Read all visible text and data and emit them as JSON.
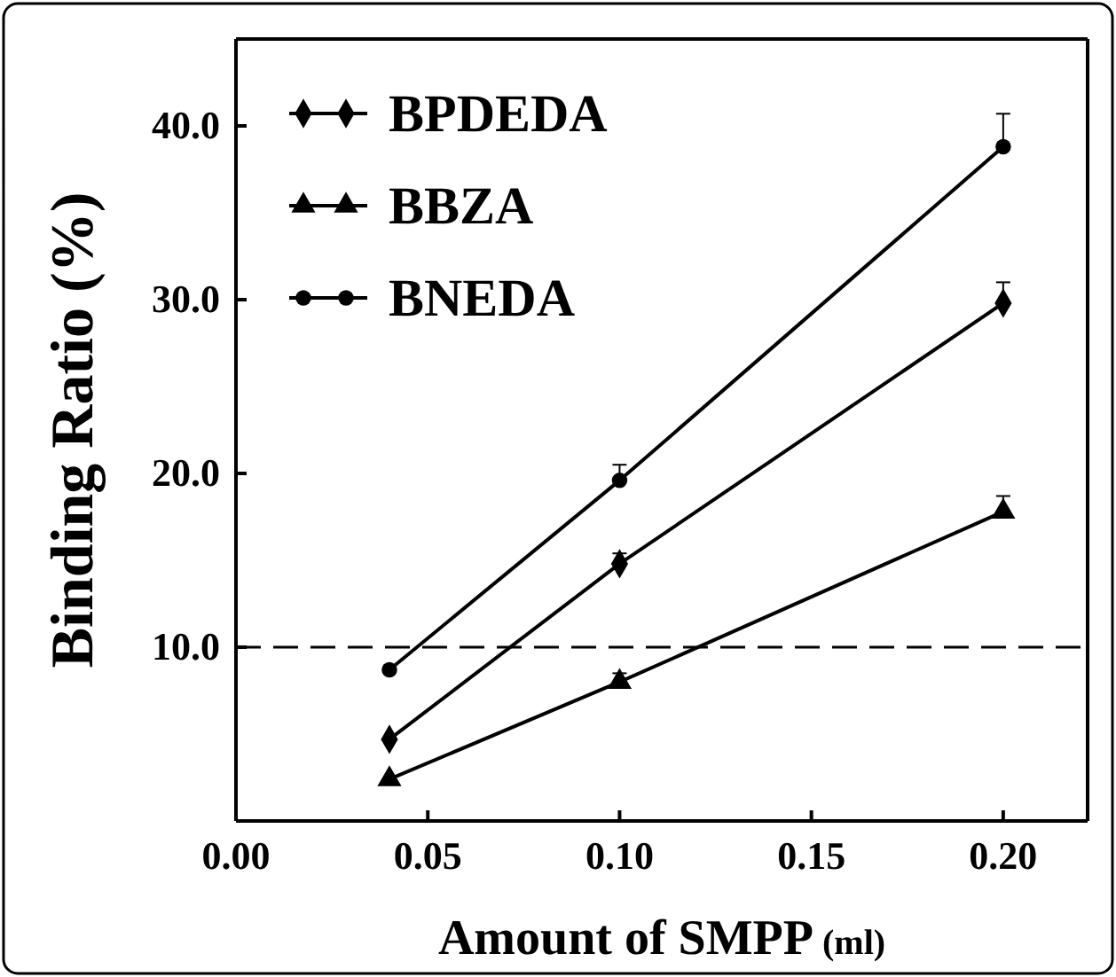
{
  "chart_data": {
    "type": "line",
    "xlabel": "Amount of SMPP (ml)",
    "ylabel": "Binding Ratio (%)",
    "xlim": [
      0,
      0.222
    ],
    "ylim": [
      0,
      45
    ],
    "xticks": [
      {
        "value": 0,
        "label": "0.00"
      },
      {
        "value": 0.05,
        "label": "0.05"
      },
      {
        "value": 0.1,
        "label": "0.10"
      },
      {
        "value": 0.15,
        "label": "0.15"
      },
      {
        "value": 0.2,
        "label": "0.20"
      }
    ],
    "yticks": [
      {
        "value": 10,
        "label": "10.0"
      },
      {
        "value": 20,
        "label": "20.0"
      },
      {
        "value": 30,
        "label": "30.0"
      },
      {
        "value": 40,
        "label": "40.0"
      }
    ],
    "x": [
      0.04,
      0.1,
      0.2
    ],
    "series": [
      {
        "name": "BPDEDA",
        "color": "#000000",
        "marker": "diamond",
        "values": [
          4.7,
          14.8,
          29.8
        ],
        "errors": [
          null,
          [
            14.8,
            15.4
          ],
          [
            29.8,
            31.0
          ]
        ]
      },
      {
        "name": "BBZA",
        "color": "#000000",
        "marker": "triangle",
        "values": [
          2.4,
          8.0,
          17.8
        ],
        "errors": [
          null,
          [
            8.0,
            8.5
          ],
          [
            17.8,
            18.7
          ]
        ]
      },
      {
        "name": "BNEDA",
        "color": "#000000",
        "marker": "circle",
        "values": [
          8.7,
          19.6,
          38.8
        ],
        "errors": [
          null,
          [
            19.6,
            20.5
          ],
          [
            38.8,
            40.7
          ]
        ]
      }
    ],
    "ref_lines": [
      {
        "axis": "y",
        "value": 10,
        "color": "#000000",
        "line_style": "dashed"
      }
    ],
    "legend": "top left",
    "grid": false,
    "line_style": "solid"
  }
}
